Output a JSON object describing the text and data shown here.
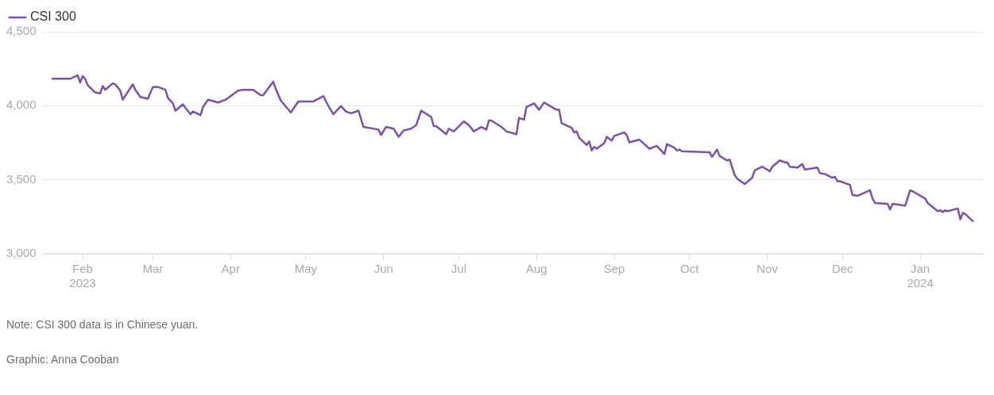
{
  "chart_data": {
    "type": "line",
    "x": [
      "2023-01-20",
      "2023-01-27",
      "2023-01-30",
      "2023-01-31",
      "2023-02-01",
      "2023-02-02",
      "2023-02-03",
      "2023-02-06",
      "2023-02-08",
      "2023-02-09",
      "2023-02-10",
      "2023-02-13",
      "2023-02-14",
      "2023-02-16",
      "2023-02-17",
      "2023-02-21",
      "2023-02-22",
      "2023-02-24",
      "2023-02-27",
      "2023-03-01",
      "2023-03-03",
      "2023-03-06",
      "2023-03-07",
      "2023-03-09",
      "2023-03-10",
      "2023-03-13",
      "2023-03-14",
      "2023-03-16",
      "2023-03-17",
      "2023-03-20",
      "2023-03-21",
      "2023-03-23",
      "2023-03-27",
      "2023-03-30",
      "2023-04-04",
      "2023-04-06",
      "2023-04-10",
      "2023-04-13",
      "2023-04-14",
      "2023-04-18",
      "2023-04-19",
      "2023-04-21",
      "2023-04-25",
      "2023-04-28",
      "2023-05-04",
      "2023-05-08",
      "2023-05-10",
      "2023-05-12",
      "2023-05-15",
      "2023-05-17",
      "2023-05-19",
      "2023-05-22",
      "2023-05-24",
      "2023-05-30",
      "2023-05-31",
      "2023-06-02",
      "2023-06-05",
      "2023-06-07",
      "2023-06-09",
      "2023-06-12",
      "2023-06-14",
      "2023-06-16",
      "2023-06-20",
      "2023-06-21",
      "2023-06-22",
      "2023-06-26",
      "2023-06-27",
      "2023-06-29",
      "2023-07-03",
      "2023-07-05",
      "2023-07-07",
      "2023-07-10",
      "2023-07-12",
      "2023-07-13",
      "2023-07-14",
      "2023-07-18",
      "2023-07-20",
      "2023-07-24",
      "2023-07-25",
      "2023-07-27",
      "2023-07-28",
      "2023-07-31",
      "2023-08-02",
      "2023-08-04",
      "2023-08-09",
      "2023-08-10",
      "2023-08-11",
      "2023-08-15",
      "2023-08-16",
      "2023-08-17",
      "2023-08-18",
      "2023-08-21",
      "2023-08-22",
      "2023-08-23",
      "2023-08-24",
      "2023-08-25",
      "2023-08-28",
      "2023-08-29",
      "2023-08-31",
      "2023-09-01",
      "2023-09-05",
      "2023-09-06",
      "2023-09-07",
      "2023-09-11",
      "2023-09-13",
      "2023-09-15",
      "2023-09-18",
      "2023-09-19",
      "2023-09-21",
      "2023-09-22",
      "2023-09-25",
      "2023-09-26",
      "2023-09-27",
      "2023-09-28",
      "2023-10-09",
      "2023-10-10",
      "2023-10-12",
      "2023-10-13",
      "2023-10-16",
      "2023-10-17",
      "2023-10-19",
      "2023-10-20",
      "2023-10-23",
      "2023-10-26",
      "2023-10-27",
      "2023-10-30",
      "2023-11-01",
      "2023-11-02",
      "2023-11-03",
      "2023-11-06",
      "2023-11-08",
      "2023-11-09",
      "2023-11-10",
      "2023-11-13",
      "2023-11-15",
      "2023-11-16",
      "2023-11-21",
      "2023-11-22",
      "2023-11-24",
      "2023-11-27",
      "2023-11-28",
      "2023-11-29",
      "2023-11-30",
      "2023-12-04",
      "2023-12-05",
      "2023-12-07",
      "2023-12-12",
      "2023-12-13",
      "2023-12-14",
      "2023-12-19",
      "2023-12-20",
      "2023-12-21",
      "2023-12-26",
      "2023-12-28",
      "2023-12-29",
      "2024-01-03",
      "2024-01-04",
      "2024-01-08",
      "2024-01-09",
      "2024-01-10",
      "2024-01-11",
      "2024-01-12",
      "2024-01-16",
      "2024-01-17",
      "2024-01-18",
      "2024-01-19",
      "2024-01-22"
    ],
    "series": [
      {
        "name": "CSI 300",
        "color": "#7b52a8",
        "values": [
          4182,
          4182,
          4206,
          4157,
          4200,
          4182,
          4139,
          4090,
          4084,
          4133,
          4108,
          4151,
          4145,
          4102,
          4041,
          4145,
          4108,
          4059,
          4047,
          4127,
          4127,
          4108,
          4053,
          4016,
          3967,
          4010,
          3986,
          3943,
          3961,
          3937,
          3992,
          4041,
          4022,
          4041,
          4102,
          4108,
          4108,
          4071,
          4071,
          4163,
          4114,
          4035,
          3955,
          4029,
          4029,
          4065,
          3998,
          3943,
          3998,
          3961,
          3949,
          3967,
          3857,
          3839,
          3802,
          3857,
          3845,
          3790,
          3833,
          3845,
          3869,
          3967,
          3924,
          3863,
          3863,
          3808,
          3845,
          3827,
          3894,
          3869,
          3827,
          3857,
          3839,
          3900,
          3900,
          3857,
          3827,
          3808,
          3918,
          3906,
          3992,
          4016,
          3973,
          4022,
          3973,
          3973,
          3882,
          3851,
          3820,
          3827,
          3784,
          3735,
          3759,
          3698,
          3722,
          3710,
          3747,
          3790,
          3765,
          3796,
          3820,
          3802,
          3753,
          3771,
          3741,
          3710,
          3729,
          3710,
          3674,
          3741,
          3716,
          3698,
          3704,
          3692,
          3686,
          3655,
          3704,
          3661,
          3631,
          3637,
          3533,
          3508,
          3471,
          3514,
          3563,
          3588,
          3569,
          3557,
          3588,
          3631,
          3618,
          3618,
          3588,
          3582,
          3606,
          3569,
          3582,
          3545,
          3539,
          3514,
          3520,
          3490,
          3490,
          3465,
          3398,
          3392,
          3429,
          3373,
          3343,
          3337,
          3300,
          3337,
          3325,
          3429,
          3422,
          3373,
          3343,
          3288,
          3294,
          3282,
          3294,
          3288,
          3306,
          3233,
          3276,
          3269,
          3220
        ]
      }
    ],
    "xlim": [
      "2023-01-16",
      "2024-01-26"
    ],
    "xticks": [
      {
        "value": "2023-02-01",
        "label": "Feb 2023"
      },
      {
        "value": "2023-03-01",
        "label": "Mar"
      },
      {
        "value": "2023-04-01",
        "label": "Apr"
      },
      {
        "value": "2023-05-01",
        "label": "May"
      },
      {
        "value": "2023-06-01",
        "label": "Jun"
      },
      {
        "value": "2023-07-01",
        "label": "Jul"
      },
      {
        "value": "2023-08-01",
        "label": "Aug"
      },
      {
        "value": "2023-09-01",
        "label": "Sep"
      },
      {
        "value": "2023-10-01",
        "label": "Oct"
      },
      {
        "value": "2023-11-01",
        "label": "Nov"
      },
      {
        "value": "2023-12-01",
        "label": "Dec"
      },
      {
        "value": "2024-01-01",
        "label": "Jan 2024"
      }
    ],
    "ylim": [
      3000,
      4500
    ],
    "yticks": [
      {
        "value": 3000,
        "label": "3,000"
      },
      {
        "value": 3500,
        "label": "3,500"
      },
      {
        "value": 4000,
        "label": "4,000"
      },
      {
        "value": 4500,
        "label": "4,500"
      }
    ],
    "grid": "y",
    "legend": "top left",
    "marker": "none",
    "line_style": "solid",
    "annotations": [
      "Note: CSI 300 data is in Chinese yuan.",
      "Graphic: Anna Cooban"
    ]
  }
}
